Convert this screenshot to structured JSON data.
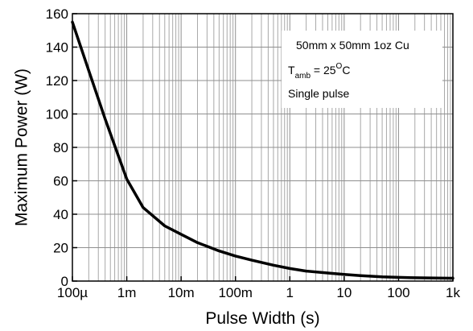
{
  "chart_data": {
    "type": "line",
    "title": "",
    "xlabel": "Pulse Width (s)",
    "ylabel": "Maximum Power (W)",
    "x_scale": "log",
    "xlim": [
      0.0001,
      1000
    ],
    "ylim": [
      0,
      160
    ],
    "x_ticks": [
      0.0001,
      0.001,
      0.01,
      0.1,
      1,
      10,
      100,
      1000
    ],
    "x_tick_labels": [
      "100µ",
      "1m",
      "10m",
      "100m",
      "1",
      "10",
      "100",
      "1k"
    ],
    "y_ticks": [
      0,
      20,
      40,
      60,
      80,
      100,
      120,
      140,
      160
    ],
    "y_tick_labels": [
      "0",
      "20",
      "40",
      "60",
      "80",
      "100",
      "120",
      "140",
      "160"
    ],
    "grid": true,
    "series": [
      {
        "x": [
          0.0001,
          0.0002,
          0.0004,
          0.0007,
          0.001,
          0.002,
          0.005,
          0.01,
          0.02,
          0.05,
          0.1,
          0.2,
          0.5,
          1,
          2,
          5,
          10,
          20,
          50,
          100,
          200,
          500,
          1000
        ],
        "y": [
          155,
          126,
          97,
          75,
          61,
          44,
          33,
          28,
          23,
          18,
          15,
          12.5,
          9.5,
          7.5,
          6,
          4.8,
          4,
          3.3,
          2.5,
          2.2,
          2.0,
          1.8,
          1.7
        ]
      }
    ],
    "annotation": {
      "line1": "50mm x 50mm 1oz Cu",
      "t_main": "T",
      "t_sub": "amb",
      "t_eq": " = 25",
      "t_sup": "O",
      "t_unit": "C",
      "line3": "Single pulse"
    }
  }
}
